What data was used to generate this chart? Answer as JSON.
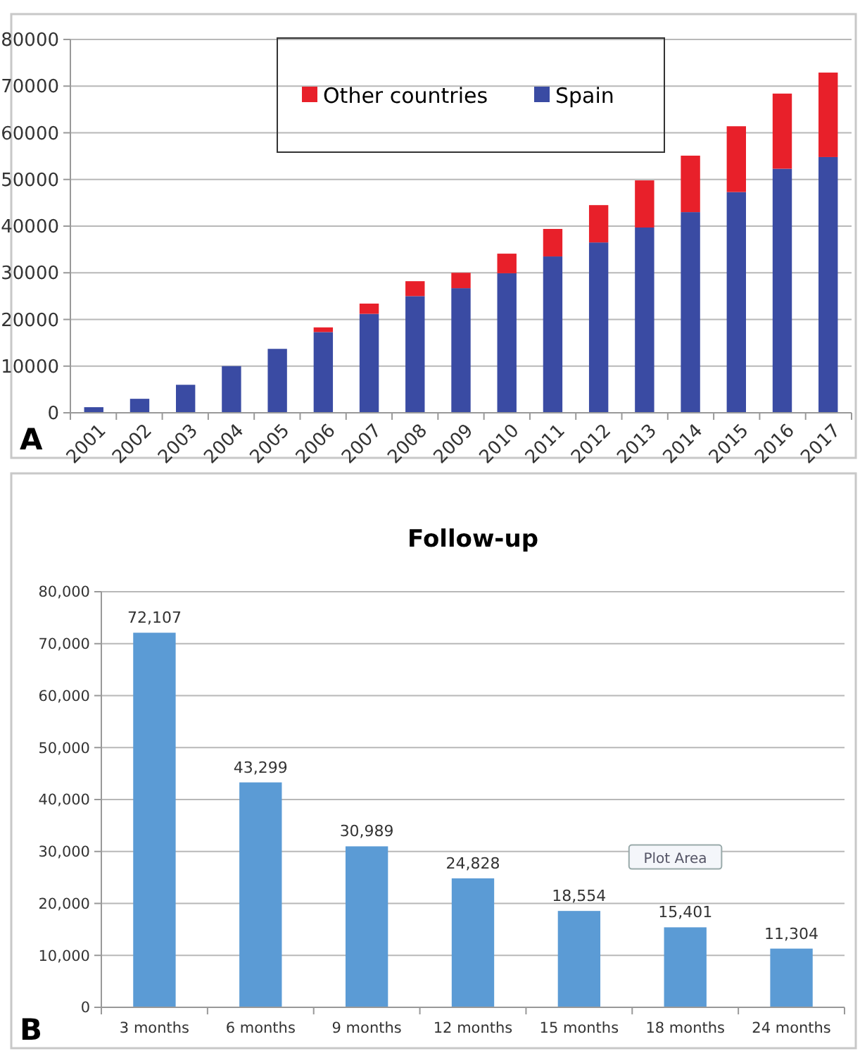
{
  "chart_data": [
    {
      "type": "bar",
      "stacked": true,
      "categories": [
        "2001",
        "2002",
        "2003",
        "2004",
        "2005",
        "2006",
        "2007",
        "2008",
        "2009",
        "2010",
        "2011",
        "2012",
        "2013",
        "2014",
        "2015",
        "2016",
        "2017"
      ],
      "series": [
        {
          "name": "Spain",
          "color": "#3a4ba3",
          "values": [
            1200,
            3000,
            6000,
            10000,
            13700,
            17300,
            21200,
            25000,
            26700,
            29900,
            33500,
            36500,
            39700,
            43000,
            47300,
            52300,
            54800
          ]
        },
        {
          "name": "Other countries",
          "color": "#e8202a",
          "values": [
            0,
            0,
            0,
            0,
            0,
            1000,
            2200,
            3200,
            3300,
            4200,
            5900,
            8000,
            10100,
            12100,
            14100,
            16100,
            18100
          ]
        }
      ],
      "ylim": [
        0,
        80000
      ],
      "yticks": [
        0,
        10000,
        20000,
        30000,
        40000,
        50000,
        60000,
        70000,
        80000
      ],
      "grid": "y",
      "legend": "top",
      "annotations": [
        "A"
      ]
    },
    {
      "type": "bar",
      "title": "Follow-up",
      "categories": [
        "3 months",
        "6 months",
        "9 months",
        "12 months",
        "15 months",
        "18 months",
        "24 months"
      ],
      "values": [
        72107,
        43299,
        30989,
        24828,
        18554,
        15401,
        11304
      ],
      "color": "#5b9bd5",
      "value_labels": [
        "72,107",
        "43,299",
        "30,989",
        "24,828",
        "18,554",
        "15,401",
        "11,304"
      ],
      "ylim": [
        0,
        80000
      ],
      "yticks": [
        {
          "value": 0,
          "label": "0"
        },
        {
          "value": 10000,
          "label": "10,000"
        },
        {
          "value": 20000,
          "label": "20,000"
        },
        {
          "value": 30000,
          "label": "30,000"
        },
        {
          "value": 40000,
          "label": "40,000"
        },
        {
          "value": 50000,
          "label": "50,000"
        },
        {
          "value": 60000,
          "label": "60,000"
        },
        {
          "value": 70000,
          "label": "70,000"
        },
        {
          "value": 80000,
          "label": "80,000"
        }
      ],
      "grid": "y",
      "annotations": [
        "B",
        "Plot Area"
      ]
    }
  ]
}
